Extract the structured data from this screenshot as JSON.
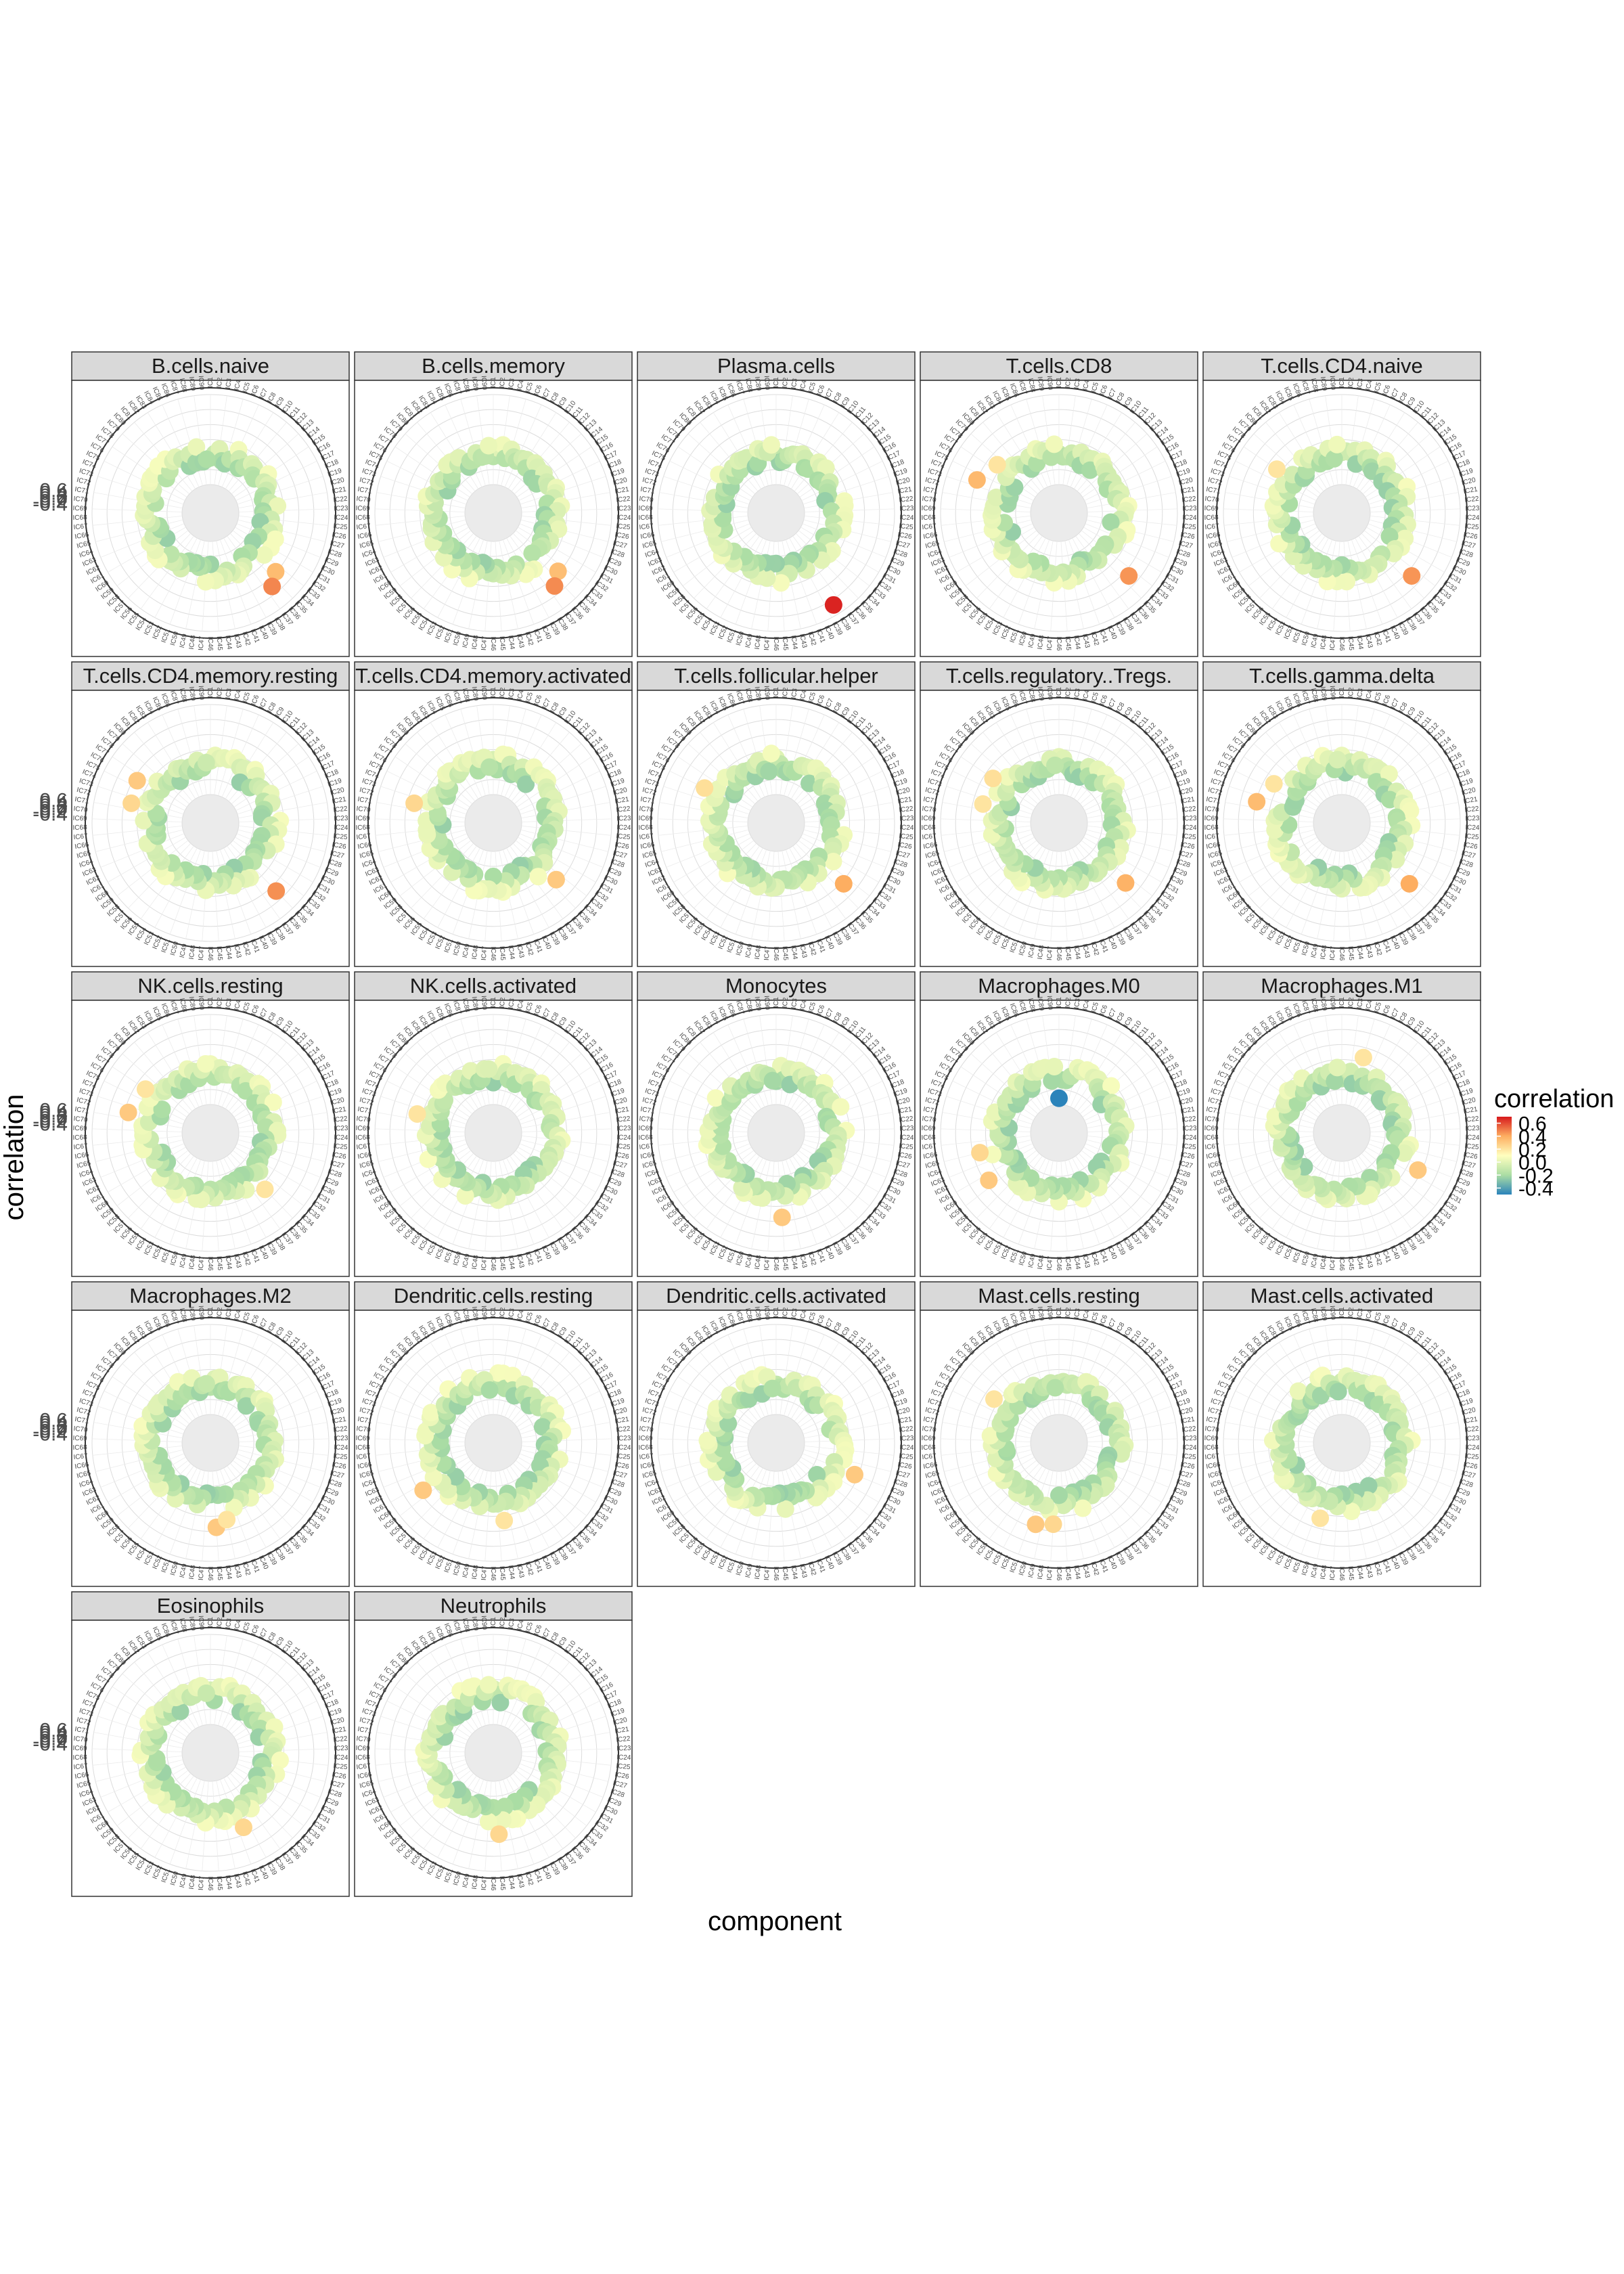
{
  "chart_data": {
    "type": "scatter",
    "coordinate_system": "polar",
    "xlabel": "component",
    "ylabel": "correlation",
    "y_ticks": [
      "0.6",
      "0.4",
      "0.2",
      "0.0",
      "-0.2",
      "-0.4"
    ],
    "ylim": [
      -0.6,
      0.7
    ],
    "grid": true,
    "components": [
      "IC1",
      "IC2",
      "IC3",
      "IC4",
      "IC5",
      "IC6",
      "IC7",
      "IC8",
      "IC9",
      "IC10",
      "IC11",
      "IC12",
      "IC13",
      "IC14",
      "IC15",
      "IC16",
      "IC17",
      "IC18",
      "IC19",
      "IC20",
      "IC21",
      "IC22",
      "IC23",
      "IC24",
      "IC25",
      "IC26",
      "IC27",
      "IC28",
      "IC29",
      "IC30",
      "IC31",
      "IC32",
      "IC33",
      "IC34",
      "IC35",
      "IC36",
      "IC37",
      "IC38",
      "IC39",
      "IC40",
      "IC41",
      "IC42",
      "IC43",
      "IC44",
      "IC45",
      "IC46",
      "IC47",
      "IC48",
      "IC49",
      "IC50",
      "IC51",
      "IC52",
      "IC53",
      "IC54",
      "IC55",
      "IC56",
      "IC57",
      "IC58",
      "IC59",
      "IC60",
      "IC61",
      "IC62",
      "IC63",
      "IC64",
      "IC65",
      "IC66",
      "IC67",
      "IC68",
      "IC69",
      "IC70",
      "IC71",
      "IC72",
      "IC73",
      "IC74",
      "IC75",
      "IC76",
      "IC77",
      "IC78",
      "IC79",
      "IC80",
      "IC81",
      "IC82",
      "IC83",
      "IC84",
      "IC85",
      "IC86",
      "IC87",
      "IC88",
      "IC89",
      "IC90"
    ],
    "legend": {
      "title": "correlation",
      "position": "right",
      "labels": [
        "0.6",
        "0.4",
        "0.2",
        "0.0",
        "-0.2",
        "-0.4"
      ],
      "range": [
        -0.5,
        0.7
      ],
      "colors": [
        "#2b83ba",
        "#abdda4",
        "#ffffbf",
        "#fdae61",
        "#d7191c"
      ]
    },
    "panels": [
      {
        "name": "B.cells.naive",
        "outliers": [
          {
            "component": "IC34",
            "value": 0.35
          },
          {
            "component": "IC36",
            "value": 0.48
          }
        ]
      },
      {
        "name": "B.cells.memory",
        "outliers": [
          {
            "component": "IC34",
            "value": 0.34
          },
          {
            "component": "IC36",
            "value": 0.47
          }
        ]
      },
      {
        "name": "Plasma.cells",
        "outliers": [
          {
            "component": "IC38",
            "value": 0.68
          }
        ]
      },
      {
        "name": "T.cells.CD8",
        "outliers": [
          {
            "component": "IC34",
            "value": 0.45
          },
          {
            "component": "IC74",
            "value": 0.36
          },
          {
            "component": "IC78",
            "value": 0.2
          }
        ]
      },
      {
        "name": "T.cells.CD4.naive",
        "outliers": [
          {
            "component": "IC34",
            "value": 0.45
          },
          {
            "component": "IC77",
            "value": 0.2
          }
        ]
      },
      {
        "name": "T.cells.CD4.memory.resting",
        "outliers": [
          {
            "component": "IC35",
            "value": 0.46
          },
          {
            "component": "IC76",
            "value": 0.3
          },
          {
            "component": "IC72",
            "value": 0.25
          }
        ]
      },
      {
        "name": "T.cells.CD4.memory.activated",
        "outliers": [
          {
            "component": "IC34",
            "value": 0.3
          },
          {
            "component": "IC72",
            "value": 0.25
          }
        ]
      },
      {
        "name": "T.cells.follicular.helper",
        "outliers": [
          {
            "component": "IC34",
            "value": 0.4
          },
          {
            "component": "IC75",
            "value": 0.22
          }
        ]
      },
      {
        "name": "T.cells.regulatory..Tregs.",
        "outliers": [
          {
            "component": "IC34",
            "value": 0.38
          },
          {
            "component": "IC77",
            "value": 0.22
          },
          {
            "component": "IC72",
            "value": 0.2
          }
        ]
      },
      {
        "name": "T.cells.gamma.delta",
        "outliers": [
          {
            "component": "IC34",
            "value": 0.4
          },
          {
            "component": "IC72",
            "value": 0.35
          },
          {
            "component": "IC76",
            "value": 0.2
          }
        ]
      },
      {
        "name": "NK.cells.resting",
        "outliers": [
          {
            "component": "IC72",
            "value": 0.3
          },
          {
            "component": "IC77",
            "value": 0.2
          },
          {
            "component": "IC35",
            "value": 0.2
          }
        ]
      },
      {
        "name": "NK.cells.activated",
        "outliers": [
          {
            "component": "IC72",
            "value": 0.2
          }
        ]
      },
      {
        "name": "Monocytes",
        "outliers": [
          {
            "component": "IC45",
            "value": 0.3
          }
        ]
      },
      {
        "name": "Macrophages.M0",
        "outliers": [
          {
            "component": "IC60",
            "value": 0.3
          },
          {
            "component": "IC65",
            "value": 0.25
          },
          {
            "component": "IC1",
            "value": -0.5
          }
        ]
      },
      {
        "name": "Macrophages.M1",
        "outliers": [
          {
            "component": "IC30",
            "value": 0.3
          },
          {
            "component": "IC5",
            "value": 0.2
          }
        ]
      },
      {
        "name": "Macrophages.M2",
        "outliers": [
          {
            "component": "IC45",
            "value": 0.3
          },
          {
            "component": "IC43",
            "value": 0.2
          }
        ]
      },
      {
        "name": "Dendritic.cells.resting",
        "outliers": [
          {
            "component": "IC60",
            "value": 0.3
          },
          {
            "component": "IC44",
            "value": 0.2
          }
        ]
      },
      {
        "name": "Dendritic.cells.activated",
        "outliers": [
          {
            "component": "IC29",
            "value": 0.3
          }
        ]
      },
      {
        "name": "Mast.cells.resting",
        "outliers": [
          {
            "component": "IC50",
            "value": 0.3
          },
          {
            "component": "IC47",
            "value": 0.25
          },
          {
            "component": "IC77",
            "value": 0.2
          }
        ]
      },
      {
        "name": "Mast.cells.activated",
        "outliers": [
          {
            "component": "IC50",
            "value": 0.2
          }
        ]
      },
      {
        "name": "Eosinophils",
        "outliers": [
          {
            "component": "IC40",
            "value": 0.25
          }
        ]
      },
      {
        "name": "Neutrophils",
        "outliers": [
          {
            "component": "IC45",
            "value": 0.25
          }
        ]
      }
    ]
  }
}
